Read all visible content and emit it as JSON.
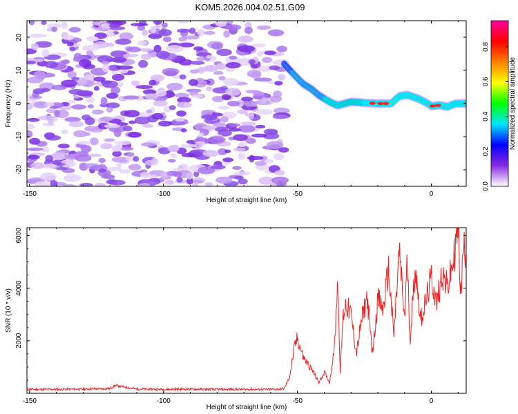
{
  "title": "KOM5.2026.004.02.51.G09",
  "chart_data": [
    {
      "type": "heatmap",
      "xlabel": "Height of straight line (km)",
      "ylabel": "Frequency (Hz)",
      "xlim": [
        -151,
        13
      ],
      "ylim": [
        -25,
        25
      ],
      "xticks": [
        "-150",
        "-100",
        "-50",
        "0"
      ],
      "xtick_values": [
        -150,
        -100,
        -50,
        0
      ],
      "yticks": [
        "20",
        "10",
        "0",
        "-10",
        "-20"
      ],
      "ytick_values": [
        20,
        10,
        0,
        -10,
        -20
      ],
      "noise_region_x": [
        -151,
        -55
      ],
      "signal_track": {
        "x": [
          -55,
          -51,
          -48,
          -45,
          -42,
          -38,
          -35,
          -30,
          -25,
          -20,
          -15,
          -12,
          -9,
          -5,
          -2,
          0,
          3,
          6,
          9,
          13
        ],
        "y": [
          12,
          8.5,
          6,
          4.5,
          2.5,
          0.5,
          -0.6,
          0.5,
          0.2,
          0,
          0,
          2.2,
          2.6,
          1.5,
          0.3,
          -0.8,
          -0.5,
          -1,
          0,
          0
        ]
      },
      "colorbar": {
        "label": "Normalized spectral amplitude",
        "range": [
          0,
          0.95
        ],
        "ticks": [
          "0.0",
          "0.2",
          "0.4",
          "0.6",
          "0.8"
        ],
        "tick_values": [
          0,
          0.2,
          0.4,
          0.6,
          0.8
        ],
        "colors": [
          "#ffffff",
          "#8a2be2",
          "#0000ff",
          "#00e5ff",
          "#00ff00",
          "#ffff00",
          "#ff8000",
          "#ff0000",
          "#ff00a0"
        ]
      }
    },
    {
      "type": "line",
      "xlabel": "Height of straight line (km)",
      "ylabel": "SNR (10 * v/v)",
      "xlim": [
        -151,
        13
      ],
      "ylim": [
        0,
        6300
      ],
      "xticks": [
        "-150",
        "-100",
        "-50",
        "0"
      ],
      "xtick_values": [
        -150,
        -100,
        -50,
        0
      ],
      "yticks": [
        "6000",
        "4000",
        "2000"
      ],
      "ytick_values": [
        6000,
        4000,
        2000
      ],
      "series": [
        {
          "name": "SNR",
          "color": "#ee2222",
          "x": [
            -151,
            -140,
            -130,
            -120,
            -118,
            -110,
            -100,
            -90,
            -80,
            -70,
            -60,
            -55,
            -53,
            -51,
            -50,
            -48,
            -46,
            -44,
            -42,
            -40,
            -38,
            -36,
            -35,
            -34,
            -33,
            -32,
            -30,
            -28,
            -26,
            -24,
            -22,
            -20,
            -18,
            -16,
            -14,
            -12,
            -10,
            -9,
            -8,
            -6,
            -4,
            -2,
            0,
            2,
            4,
            6,
            8,
            9,
            10,
            11,
            12,
            13
          ],
          "y": [
            150,
            150,
            160,
            180,
            300,
            160,
            150,
            160,
            150,
            150,
            150,
            170,
            600,
            1800,
            2100,
            1400,
            1100,
            800,
            400,
            800,
            400,
            2000,
            4500,
            800,
            2900,
            3400,
            3000,
            1500,
            2800,
            3700,
            1500,
            3600,
            3200,
            4700,
            2200,
            5400,
            2800,
            5100,
            2000,
            4800,
            2800,
            3500,
            4400,
            3400,
            4600,
            4000,
            4900,
            5600,
            6300,
            3800,
            5500,
            5500
          ]
        }
      ]
    }
  ]
}
